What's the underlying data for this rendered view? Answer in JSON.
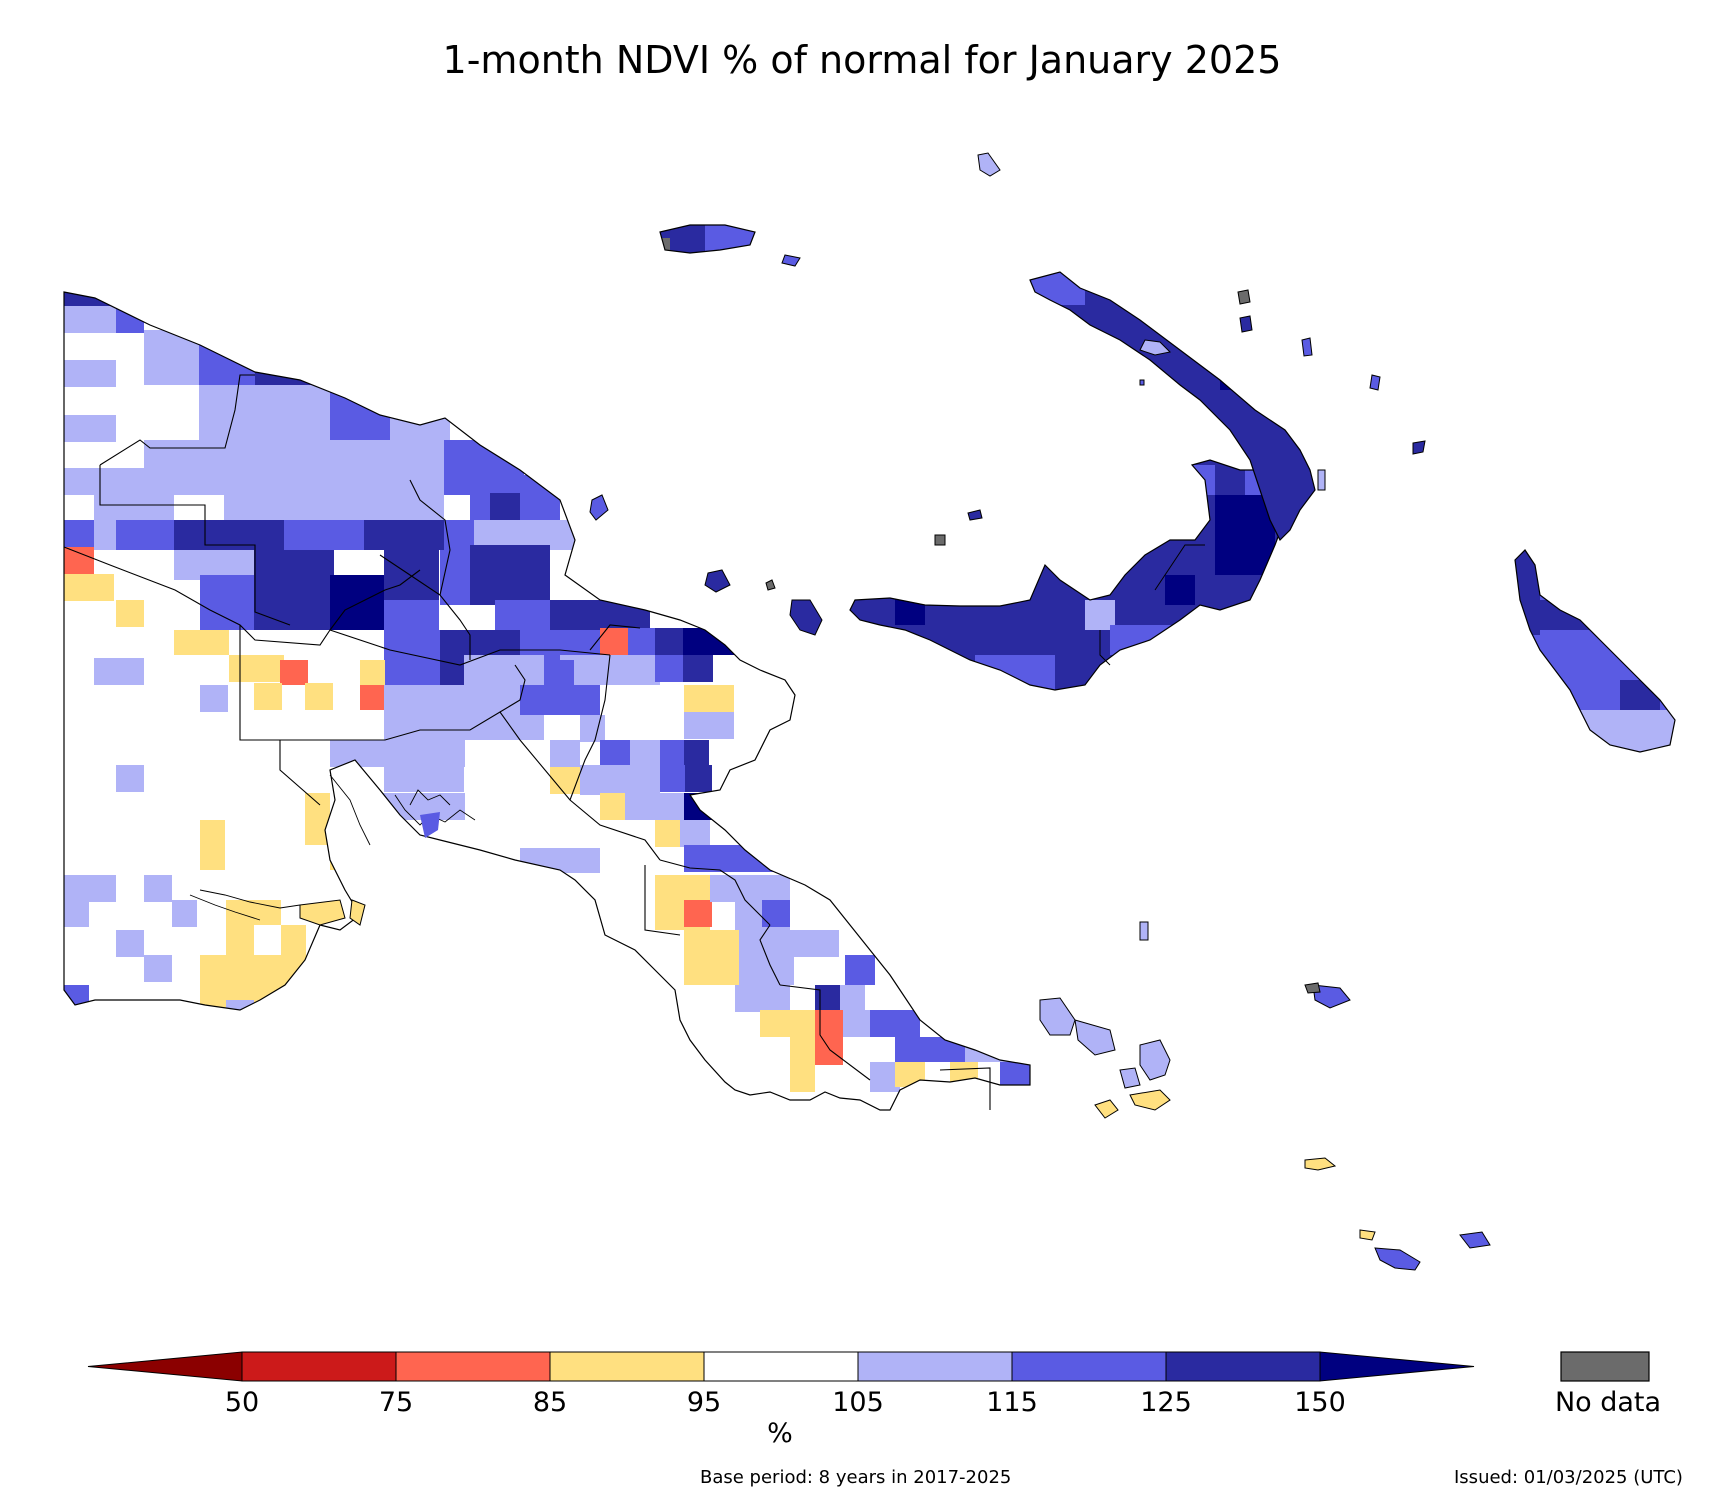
{
  "title": "1-month NDVI % of normal for January 2025",
  "legend": {
    "ticks": [
      "50",
      "75",
      "85",
      "95",
      "105",
      "115",
      "125",
      "150"
    ],
    "unit": "%",
    "no_data_label": "No data",
    "colors": {
      "lt50": "#8B0000",
      "c50_75": "#CC1A1A",
      "c75_85": "#FF6550",
      "c85_95": "#FFE080",
      "c95_105": "#FFFFFF",
      "c105_115": "#B0B3F7",
      "c115_125": "#5A5BE3",
      "c125_150": "#2A2AA0",
      "gt150": "#000080",
      "no_data": "#6B6B6B"
    }
  },
  "footer": {
    "base_period": "Base period: 8 years in 2017-2025",
    "issued": "Issued: 01/03/2025 (UTC)"
  }
}
